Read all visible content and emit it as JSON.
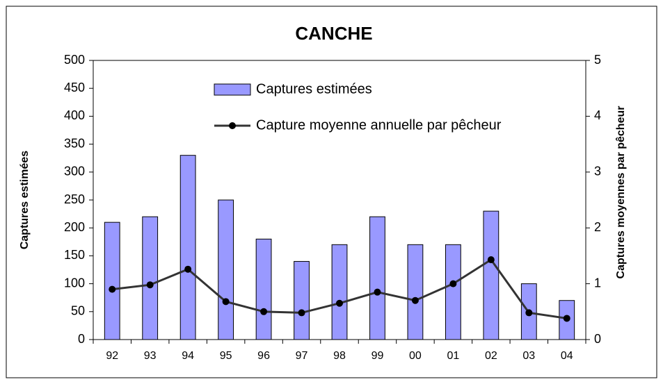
{
  "chart_data": {
    "type": "bar",
    "title": "CANCHE",
    "ylabel": "Captures estimées",
    "y2label": "Captures moyennes par pêcheur",
    "categories": [
      "92",
      "93",
      "94",
      "95",
      "96",
      "97",
      "98",
      "99",
      "00",
      "01",
      "02",
      "03",
      "04"
    ],
    "series": [
      {
        "name": "Captures estimées",
        "type": "bar",
        "color": "#9999ff",
        "values": [
          210,
          220,
          330,
          250,
          180,
          140,
          170,
          220,
          170,
          170,
          230,
          100,
          70
        ]
      },
      {
        "name": "Capture moyenne annuelle par pêcheur",
        "type": "line",
        "axis": "y2",
        "color": "#333333",
        "values": [
          0.9,
          0.98,
          1.26,
          0.68,
          0.5,
          0.48,
          0.65,
          0.85,
          0.7,
          1.0,
          1.43,
          0.48,
          0.38
        ]
      }
    ],
    "ylim": [
      0,
      500
    ],
    "yticks": [
      0,
      50,
      100,
      150,
      200,
      250,
      300,
      350,
      400,
      450,
      500
    ],
    "y2lim": [
      0,
      5
    ],
    "y2ticks": [
      0,
      1,
      2,
      3,
      4,
      5
    ],
    "grid": false
  }
}
